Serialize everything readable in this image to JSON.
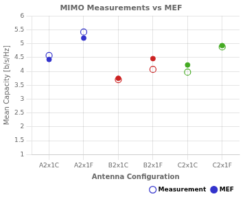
{
  "chart_data": {
    "type": "scatter",
    "title": "MIMO Measurements vs MEF",
    "xlabel": "Antenna Configuration",
    "ylabel": "Mean Capacity [b/s/Hz]",
    "categories": [
      "A2x1C",
      "A2x1F",
      "B2x1C",
      "B2x1F",
      "C2x1C",
      "C2x1F"
    ],
    "series": [
      {
        "name": "Measurement",
        "marker": "open_circle",
        "color": "#3333cc",
        "colors": [
          "#3333cc",
          "#3333cc",
          "#cc2222",
          "#cc2222",
          "#44aa22",
          "#44aa22"
        ],
        "values": [
          4.57,
          5.42,
          3.7,
          4.07,
          3.97,
          4.88
        ]
      },
      {
        "name": "MEF",
        "marker": "circle",
        "color": "#3333cc",
        "colors": [
          "#3333cc",
          "#3333cc",
          "#cc2222",
          "#cc2222",
          "#44aa22",
          "#44aa22"
        ],
        "values": [
          4.43,
          5.2,
          3.75,
          4.46,
          4.23,
          4.93
        ]
      }
    ],
    "ylim": [
      1,
      6
    ],
    "yticks": [
      1,
      1.5,
      2,
      2.5,
      3,
      3.5,
      4,
      4.5,
      5,
      5.5,
      6
    ],
    "grid": true,
    "legend": "lower right"
  }
}
